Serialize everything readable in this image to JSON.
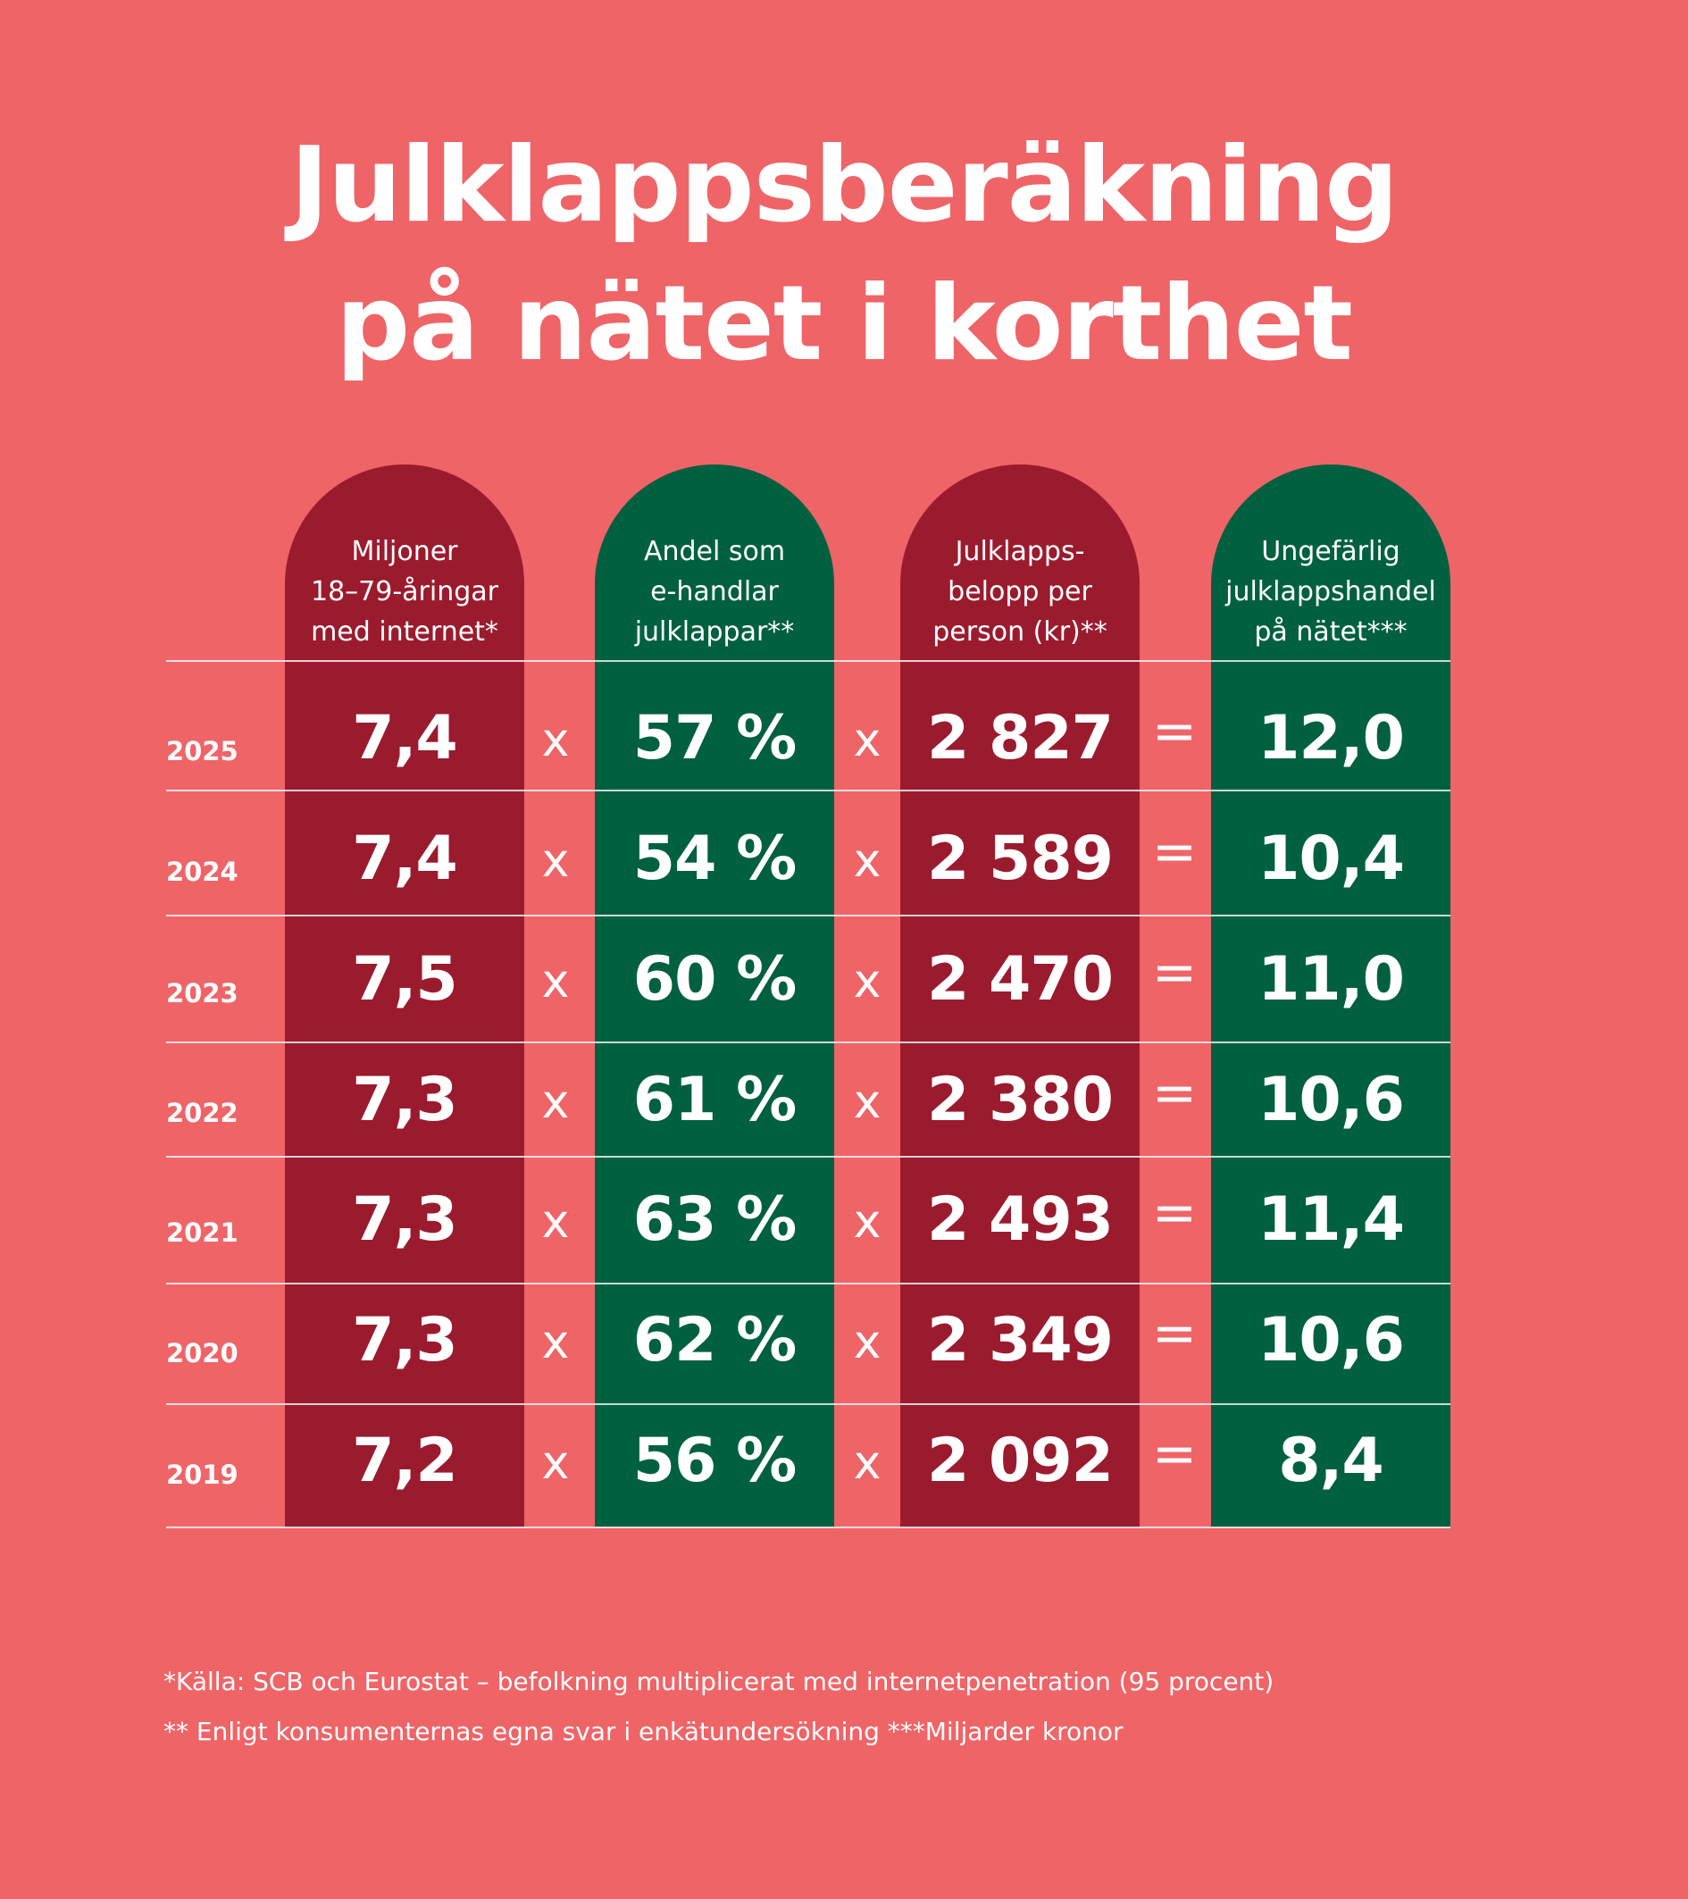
{
  "title": {
    "line1": "Julklappsberäkning",
    "line2": "på nätet i korthet"
  },
  "chart_data": {
    "type": "table",
    "title": "Julklappsberäkning på nätet i korthet",
    "columns": [
      {
        "name": "Miljoner 18–79-åringar med internet*",
        "color": "#9b1b2e"
      },
      {
        "name": "Andel som e-handlar julklappar**",
        "color": "#006040"
      },
      {
        "name": "Julklapps-belopp per person (kr)**",
        "color": "#9b1b2e"
      },
      {
        "name": "Ungefärlig julklappshandel på nätet***",
        "color": "#006040"
      }
    ],
    "headers": [
      [
        "Miljoner",
        "18–79-åringar",
        "med internet*"
      ],
      [
        "Andel som",
        "e-handlar",
        "julklappar**"
      ],
      [
        "Julklapps-",
        "belopp per",
        "person (kr)**"
      ],
      [
        "Ungefärlig",
        "julklappshandel",
        "på nätet***"
      ]
    ],
    "operators": [
      "x",
      "x",
      "="
    ],
    "rows": [
      {
        "year": "2025",
        "values": [
          "7,4",
          "57 %",
          "2 827",
          "12,0"
        ]
      },
      {
        "year": "2024",
        "values": [
          "7,4",
          "54 %",
          "2 589",
          "10,4"
        ]
      },
      {
        "year": "2023",
        "values": [
          "7,5",
          "60 %",
          "2 470",
          "11,0"
        ]
      },
      {
        "year": "2022",
        "values": [
          "7,3",
          "61 %",
          "2 380",
          "10,6"
        ]
      },
      {
        "year": "2021",
        "values": [
          "7,3",
          "63 %",
          "2 493",
          "11,4"
        ]
      },
      {
        "year": "2020",
        "values": [
          "7,3",
          "62 %",
          "2 349",
          "10,6"
        ]
      },
      {
        "year": "2019",
        "values": [
          "7,2",
          "56 %",
          "2 092",
          "8,4"
        ]
      }
    ]
  },
  "footnotes": {
    "line1": "*Källa: SCB och Eurostat – befolkning multiplicerat med internetpenetration (95 procent)",
    "line2": "** Enligt konsumenternas egna svar i enkätundersökning ***Miljarder kronor"
  },
  "colors": {
    "background": "#ef6467",
    "red": "#9b1b2e",
    "green": "#006040",
    "text": "#ffffff"
  }
}
